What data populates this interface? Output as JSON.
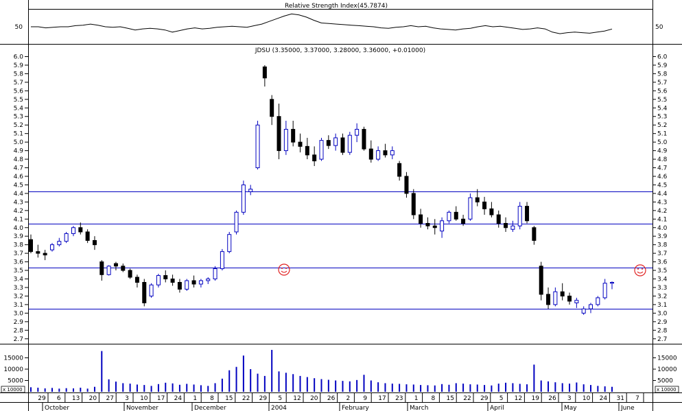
{
  "chart_data": {
    "type": "candlestick",
    "title": "JDSU (3.35000, 3.37000, 3.28000, 3.36000, +0.01000)",
    "price_ticks": [
      "2.7",
      "2.8",
      "2.9",
      "3.0",
      "3.1",
      "3.2",
      "3.3",
      "3.4",
      "3.5",
      "3.6",
      "3.7",
      "3.8",
      "3.9",
      "4.0",
      "4.1",
      "4.2",
      "4.3",
      "4.4",
      "4.5",
      "4.6",
      "4.7",
      "4.8",
      "4.9",
      "5.0",
      "5.1",
      "5.2",
      "5.3",
      "5.4",
      "5.5",
      "5.6",
      "5.7",
      "5.8",
      "5.9",
      "6.0"
    ],
    "ylim": [
      2.65,
      6.02
    ],
    "horizontal_lines": [
      4.42,
      4.05,
      3.53,
      3.05
    ],
    "rsi": {
      "title": "Relative Strength Index(45.7874)",
      "tick": "50",
      "values": [
        50,
        50,
        48,
        49,
        50,
        50,
        52,
        53,
        55,
        53,
        50,
        49,
        50,
        47,
        44,
        46,
        47,
        46,
        44,
        40,
        43,
        46,
        48,
        46,
        47,
        49,
        50,
        51,
        50,
        49,
        52,
        55,
        60,
        65,
        70,
        74,
        72,
        68,
        62,
        57,
        56,
        55,
        54,
        53,
        52,
        51,
        50,
        48,
        47,
        49,
        50,
        52,
        50,
        51,
        48,
        46,
        45,
        44,
        46,
        47,
        50,
        52,
        50,
        51,
        49,
        47,
        45,
        46,
        48,
        46,
        40,
        37,
        39,
        40,
        39,
        38,
        40,
        42,
        45.8
      ]
    },
    "candles": [
      [
        3.86,
        3.92,
        3.7,
        3.72
      ],
      [
        3.72,
        3.8,
        3.65,
        3.7
      ],
      [
        3.7,
        3.74,
        3.62,
        3.68
      ],
      [
        3.74,
        3.82,
        3.72,
        3.8
      ],
      [
        3.8,
        3.88,
        3.78,
        3.84
      ],
      [
        3.84,
        3.95,
        3.82,
        3.93
      ],
      [
        3.93,
        4.02,
        3.9,
        4.0
      ],
      [
        4.0,
        4.06,
        3.92,
        3.95
      ],
      [
        3.95,
        3.98,
        3.82,
        3.85
      ],
      [
        3.85,
        3.9,
        3.74,
        3.8
      ],
      [
        3.6,
        3.62,
        3.38,
        3.45
      ],
      [
        3.45,
        3.56,
        3.44,
        3.55
      ],
      [
        3.58,
        3.6,
        3.5,
        3.55
      ],
      [
        3.55,
        3.58,
        3.48,
        3.5
      ],
      [
        3.5,
        3.52,
        3.4,
        3.42
      ],
      [
        3.42,
        3.45,
        3.3,
        3.36
      ],
      [
        3.36,
        3.4,
        3.08,
        3.12
      ],
      [
        3.2,
        3.35,
        3.18,
        3.33
      ],
      [
        3.33,
        3.46,
        3.3,
        3.44
      ],
      [
        3.44,
        3.5,
        3.36,
        3.4
      ],
      [
        3.4,
        3.45,
        3.32,
        3.36
      ],
      [
        3.36,
        3.4,
        3.24,
        3.28
      ],
      [
        3.28,
        3.4,
        3.26,
        3.38
      ],
      [
        3.38,
        3.44,
        3.3,
        3.34
      ],
      [
        3.34,
        3.4,
        3.3,
        3.38
      ],
      [
        3.38,
        3.42,
        3.34,
        3.4
      ],
      [
        3.4,
        3.55,
        3.38,
        3.52
      ],
      [
        3.52,
        3.75,
        3.5,
        3.72
      ],
      [
        3.72,
        3.95,
        3.7,
        3.92
      ],
      [
        3.95,
        4.2,
        3.92,
        4.18
      ],
      [
        4.18,
        4.55,
        4.15,
        4.5
      ],
      [
        4.42,
        4.5,
        4.38,
        4.45
      ],
      [
        4.7,
        5.25,
        4.68,
        5.2
      ],
      [
        5.88,
        5.9,
        5.65,
        5.75
      ],
      [
        5.5,
        5.55,
        5.2,
        5.3
      ],
      [
        5.3,
        5.45,
        4.8,
        4.9
      ],
      [
        4.9,
        5.25,
        4.85,
        5.15
      ],
      [
        5.15,
        5.25,
        4.95,
        5.0
      ],
      [
        5.0,
        5.1,
        4.88,
        4.95
      ],
      [
        4.95,
        5.05,
        4.8,
        4.85
      ],
      [
        4.85,
        4.95,
        4.72,
        4.78
      ],
      [
        4.8,
        5.05,
        4.78,
        5.02
      ],
      [
        5.02,
        5.08,
        4.92,
        4.96
      ],
      [
        4.96,
        5.1,
        4.9,
        5.05
      ],
      [
        5.05,
        5.1,
        4.85,
        4.88
      ],
      [
        4.88,
        5.12,
        4.85,
        5.08
      ],
      [
        5.08,
        5.22,
        5.0,
        5.15
      ],
      [
        5.15,
        5.18,
        4.9,
        4.92
      ],
      [
        4.92,
        5.02,
        4.76,
        4.8
      ],
      [
        4.8,
        4.95,
        4.78,
        4.9
      ],
      [
        4.9,
        4.98,
        4.82,
        4.85
      ],
      [
        4.85,
        4.95,
        4.8,
        4.9
      ],
      [
        4.75,
        4.78,
        4.55,
        4.6
      ],
      [
        4.6,
        4.65,
        4.35,
        4.4
      ],
      [
        4.4,
        4.45,
        4.1,
        4.15
      ],
      [
        4.15,
        4.22,
        4.0,
        4.05
      ],
      [
        4.05,
        4.12,
        3.98,
        4.02
      ],
      [
        4.02,
        4.1,
        3.92,
        4.0
      ],
      [
        3.96,
        4.12,
        3.88,
        4.08
      ],
      [
        4.08,
        4.2,
        4.05,
        4.18
      ],
      [
        4.18,
        4.25,
        4.08,
        4.1
      ],
      [
        4.1,
        4.15,
        4.02,
        4.05
      ],
      [
        4.1,
        4.4,
        4.08,
        4.35
      ],
      [
        4.35,
        4.45,
        4.25,
        4.3
      ],
      [
        4.3,
        4.36,
        4.15,
        4.22
      ],
      [
        4.22,
        4.3,
        4.12,
        4.15
      ],
      [
        4.15,
        4.2,
        4.0,
        4.05
      ],
      [
        4.05,
        4.12,
        3.95,
        4.0
      ],
      [
        3.98,
        4.08,
        3.95,
        4.02
      ],
      [
        4.02,
        4.3,
        3.98,
        4.25
      ],
      [
        4.25,
        4.3,
        4.05,
        4.08
      ],
      [
        4.0,
        4.02,
        3.8,
        3.85
      ],
      [
        3.55,
        3.6,
        3.15,
        3.22
      ],
      [
        3.22,
        3.3,
        3.05,
        3.1
      ],
      [
        3.1,
        3.3,
        3.08,
        3.25
      ],
      [
        3.25,
        3.35,
        3.15,
        3.2
      ],
      [
        3.2,
        3.24,
        3.1,
        3.14
      ],
      [
        3.12,
        3.18,
        3.06,
        3.15
      ],
      [
        3.0,
        3.08,
        2.98,
        3.05
      ],
      [
        3.05,
        3.12,
        3.0,
        3.1
      ],
      [
        3.1,
        3.2,
        3.08,
        3.18
      ],
      [
        3.18,
        3.4,
        3.16,
        3.35
      ],
      [
        3.35,
        3.37,
        3.28,
        3.36
      ]
    ],
    "volume": {
      "ticks": [
        "5000",
        "10000",
        "15000"
      ],
      "multiplier_label": "x 10000",
      "ylim": [
        0,
        20000
      ],
      "values": [
        2000,
        1800,
        1500,
        1700,
        1400,
        1600,
        1500,
        1800,
        1400,
        2200,
        18000,
        5500,
        4500,
        3800,
        3600,
        3200,
        3000,
        2600,
        3400,
        4000,
        3700,
        3100,
        3500,
        3200,
        2900,
        2600,
        3800,
        5800,
        9500,
        11000,
        16000,
        10000,
        8000,
        7000,
        18500,
        9000,
        8400,
        7800,
        7000,
        6500,
        6000,
        5600,
        5300,
        5000,
        4800,
        4600,
        5200,
        7500,
        5000,
        4200,
        3800,
        3600,
        3500,
        3300,
        3200,
        3000,
        2900,
        2800,
        3400,
        3100,
        3800,
        3600,
        3300,
        3200,
        3000,
        2800,
        3600,
        4000,
        3800,
        3500,
        3300,
        12000,
        5000,
        4600,
        4200,
        3800,
        3600,
        4100,
        3300,
        3000,
        2600,
        2400,
        2200
      ]
    },
    "x_dates": [
      "29",
      "6",
      "13",
      "20",
      "27",
      "3",
      "10",
      "17",
      "24",
      "1",
      "8",
      "15",
      "22",
      "29",
      "5",
      "12",
      "20",
      "26",
      "2",
      "9",
      "17",
      "23",
      "1",
      "8",
      "15",
      "22",
      "29",
      "5",
      "12",
      "19",
      "26",
      "3",
      "10",
      "24",
      "31",
      "7"
    ],
    "x_months": [
      "October",
      "November",
      "December",
      "2004",
      "February",
      "March",
      "April",
      "May",
      "June"
    ],
    "markers": [
      "smiley-icon",
      "smiley-icon"
    ]
  }
}
